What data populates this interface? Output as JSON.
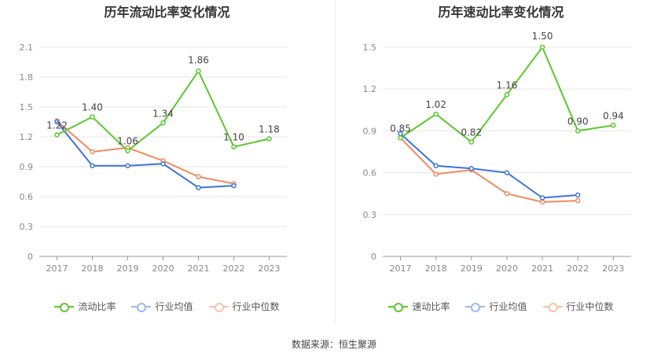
{
  "source_text": "数据来源：恒生聚源",
  "chart_data": [
    {
      "type": "line",
      "title": "历年流动比率变化情况",
      "categories": [
        "2017",
        "2018",
        "2019",
        "2020",
        "2021",
        "2022",
        "2023"
      ],
      "ylim": [
        0,
        2.1
      ],
      "yticks": [
        "0",
        "0.3",
        "0.6",
        "0.9",
        "1.2",
        "1.5",
        "1.8",
        "2.1"
      ],
      "grid": true,
      "legend_position": "bottom",
      "series": [
        {
          "name": "流动比率",
          "color": "#5cc72e",
          "values": [
            1.22,
            1.4,
            1.06,
            1.34,
            1.86,
            1.1,
            1.18
          ],
          "labels": [
            "1.22",
            "1.40",
            "1.06",
            "1.34",
            "1.86",
            "1.10",
            "1.18"
          ]
        },
        {
          "name": "行业均值",
          "color": "#3d74db",
          "values": [
            1.35,
            0.91,
            0.91,
            0.93,
            0.69,
            0.71,
            null
          ]
        },
        {
          "name": "行业中位数",
          "color": "#f08a5d",
          "values": [
            1.36,
            1.05,
            1.09,
            0.96,
            0.8,
            0.73,
            null
          ]
        }
      ]
    },
    {
      "type": "line",
      "title": "历年速动比率变化情况",
      "categories": [
        "2017",
        "2018",
        "2019",
        "2020",
        "2021",
        "2022",
        "2023"
      ],
      "ylim": [
        0,
        1.5
      ],
      "yticks": [
        "0",
        "0.3",
        "0.6",
        "0.9",
        "1.2",
        "1.5"
      ],
      "grid": true,
      "legend_position": "bottom",
      "series": [
        {
          "name": "速动比率",
          "color": "#5cc72e",
          "values": [
            0.85,
            1.02,
            0.82,
            1.16,
            1.5,
            0.9,
            0.94
          ],
          "labels": [
            "0.85",
            "1.02",
            "0.82",
            "1.16",
            "1.50",
            "0.90",
            "0.94"
          ]
        },
        {
          "name": "行业均值",
          "color": "#3d74db",
          "values": [
            0.88,
            0.65,
            0.63,
            0.6,
            0.42,
            0.44,
            null
          ]
        },
        {
          "name": "行业中位数",
          "color": "#f08a5d",
          "values": [
            0.85,
            0.59,
            0.62,
            0.45,
            0.39,
            0.4,
            null
          ]
        }
      ]
    }
  ]
}
